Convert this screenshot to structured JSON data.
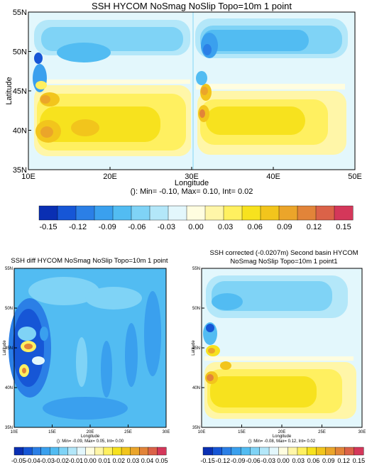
{
  "chart_data": [
    {
      "type": "heatmap",
      "title": "SSH HYCOM NoSmag NoSlip Topo=10m 1 point",
      "xlabel": "Longitude",
      "ylabel": "Latitude",
      "x_ticks": [
        "10E",
        "20E",
        "30E",
        "40E",
        "50E"
      ],
      "y_ticks": [
        "35N",
        "40N",
        "45N",
        "50N",
        "55N"
      ],
      "xlim": [
        10,
        50
      ],
      "ylim": [
        35,
        55
      ],
      "stats": "(): Min= -0.10, Max= 0.10, Int= 0.02",
      "colorbar_ticks": [
        "-0.15",
        "-0.12",
        "-0.09",
        "-0.06",
        "-0.03",
        "0.00",
        "0.03",
        "0.06",
        "0.09",
        "0.12",
        "0.15"
      ],
      "zlim": [
        -0.15,
        0.15
      ]
    },
    {
      "type": "heatmap",
      "title": "SSH diff HYCOM NoSmag NoSlip Topo=10m 1 point",
      "xlabel": "Longitude",
      "ylabel": "Latitude",
      "x_ticks": [
        "10E",
        "15E",
        "20E",
        "25E",
        "30E"
      ],
      "y_ticks": [
        "35N",
        "40N",
        "45N",
        "50N",
        "55N"
      ],
      "xlim": [
        10,
        30
      ],
      "ylim": [
        35,
        55
      ],
      "stats": "(): Min= -0.09, Max= 0.05, Int= 0.00",
      "colorbar_ticks": [
        "-0.05",
        "-0.04",
        "-0.03",
        "-0.02",
        "-0.01",
        "0.00",
        "0.01",
        "0.02",
        "0.03",
        "0.04",
        "0.05"
      ],
      "zlim": [
        -0.05,
        0.05
      ]
    },
    {
      "type": "heatmap",
      "title_line1": "SSH corrected (-0.0207m) Second basin HYCOM",
      "title_line2": "NoSmag NoSlip Topo=10m 1 point1",
      "xlabel": "Longitude",
      "ylabel": "Latitude",
      "x_ticks": [
        "10E",
        "15E",
        "20E",
        "25E",
        "30E"
      ],
      "y_ticks": [
        "35N",
        "40N",
        "45N",
        "50N",
        "55N"
      ],
      "xlim": [
        10,
        30
      ],
      "ylim": [
        35,
        55
      ],
      "stats": "(): Min= -0.08, Max= 0.12, Int= 0.02",
      "colorbar_ticks": [
        "-0.15",
        "-0.12",
        "-0.09",
        "-0.06",
        "-0.03",
        "0.00",
        "0.03",
        "0.06",
        "0.09",
        "0.12",
        "0.15"
      ],
      "zlim": [
        -0.15,
        0.15
      ]
    }
  ],
  "colors": {
    "palette": [
      "#0a2fb3",
      "#1656d6",
      "#2b7fe6",
      "#3aa0ee",
      "#52bcf2",
      "#7fd3f6",
      "#b3e7f9",
      "#e3f7fc",
      "#fffde0",
      "#fff6a8",
      "#fff060",
      "#f7e21e",
      "#f2c51c",
      "#eba52a",
      "#e28439",
      "#db6248",
      "#d4375a"
    ]
  }
}
